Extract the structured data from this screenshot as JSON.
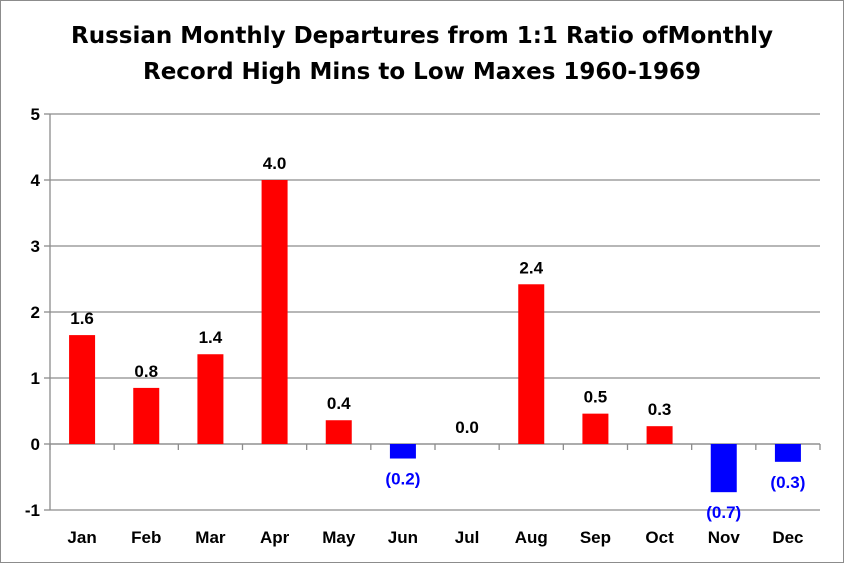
{
  "chart_data": {
    "type": "bar",
    "title_lines": [
      "Russian Monthly Departures from 1:1 Ratio ofMonthly",
      "Record High Mins to Low Maxes 1960-1969"
    ],
    "categories": [
      "Jan",
      "Feb",
      "Mar",
      "Apr",
      "May",
      "Jun",
      "Jul",
      "Aug",
      "Sep",
      "Oct",
      "Nov",
      "Dec"
    ],
    "values": [
      1.65,
      0.85,
      1.36,
      4.0,
      0.36,
      -0.22,
      0.0,
      2.42,
      0.46,
      0.27,
      -0.73,
      -0.27
    ],
    "data_labels": [
      "1.6",
      "0.8",
      "1.4",
      "4.0",
      "0.4",
      "(0.2)",
      "0.0",
      "2.4",
      "0.5",
      "0.3",
      "(0.7)",
      "(0.3)"
    ],
    "yticks": [
      "-1",
      "0",
      "1",
      "2",
      "3",
      "4",
      "5"
    ],
    "ylim": [
      -1,
      5
    ],
    "grid": true,
    "legend": "none",
    "colors": {
      "positive": "#ff0000",
      "negative": "#0000ff",
      "grid": "#8c8c8c"
    }
  }
}
